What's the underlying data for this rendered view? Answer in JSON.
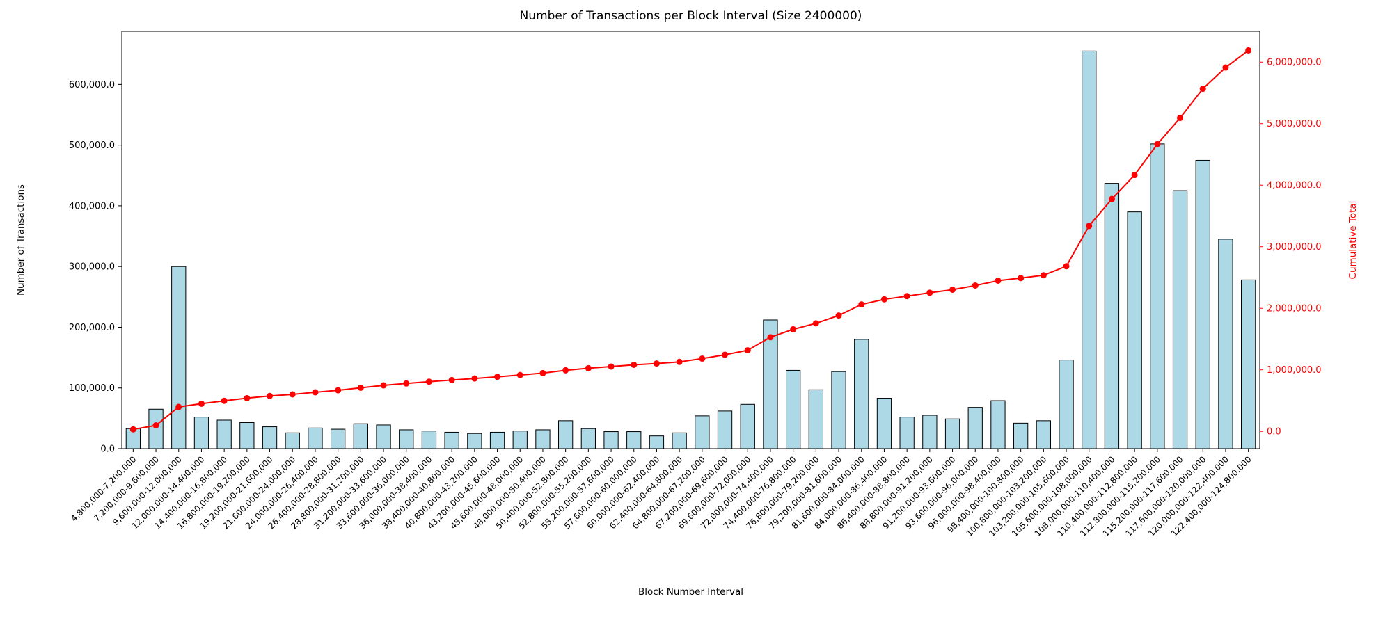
{
  "page": {
    "background": "#ffffff"
  },
  "chart_data": {
    "type": "bar",
    "title": "Number of Transactions per Block Interval (Size 2400000)",
    "xlabel": "Block Number Interval",
    "ylabel": "Number of Transactions",
    "ylabel_right": "Cumulative Total",
    "grid": false,
    "legend": "none",
    "categories": [
      "4,800,000-7,200,000",
      "7,200,000-9,600,000",
      "9,600,000-12,000,000",
      "12,000,000-14,400,000",
      "14,400,000-16,800,000",
      "16,800,000-19,200,000",
      "19,200,000-21,600,000",
      "21,600,000-24,000,000",
      "24,000,000-26,400,000",
      "26,400,000-28,800,000",
      "28,800,000-31,200,000",
      "31,200,000-33,600,000",
      "33,600,000-36,000,000",
      "36,000,000-38,400,000",
      "38,400,000-40,800,000",
      "40,800,000-43,200,000",
      "43,200,000-45,600,000",
      "45,600,000-48,000,000",
      "48,000,000-50,400,000",
      "50,400,000-52,800,000",
      "52,800,000-55,200,000",
      "55,200,000-57,600,000",
      "57,600,000-60,000,000",
      "60,000,000-62,400,000",
      "62,400,000-64,800,000",
      "64,800,000-67,200,000",
      "67,200,000-69,600,000",
      "69,600,000-72,000,000",
      "72,000,000-74,400,000",
      "74,400,000-76,800,000",
      "76,800,000-79,200,000",
      "79,200,000-81,600,000",
      "81,600,000-84,000,000",
      "84,000,000-86,400,000",
      "86,400,000-88,800,000",
      "88,800,000-91,200,000",
      "91,200,000-93,600,000",
      "93,600,000-96,000,000",
      "96,000,000-98,400,000",
      "98,400,000-100,800,000",
      "100,800,000-103,200,000",
      "103,200,000-105,600,000",
      "105,600,000-108,000,000",
      "108,000,000-110,400,000",
      "110,400,000-112,800,000",
      "112,800,000-115,200,000",
      "115,200,000-117,600,000",
      "117,600,000-120,000,000",
      "120,000,000-122,400,000",
      "122,400,000-124,800,000"
    ],
    "series": [
      {
        "name": "Number of Transactions",
        "type": "bar",
        "color": "#add8e6",
        "edge_color": "#000000",
        "values": [
          33000,
          65000,
          300000,
          52000,
          47000,
          43000,
          36000,
          26000,
          34000,
          32000,
          41000,
          39000,
          31000,
          29000,
          27000,
          25000,
          27000,
          29000,
          31000,
          46000,
          33000,
          28000,
          28000,
          21000,
          26000,
          54000,
          62000,
          73000,
          212000,
          129000,
          97000,
          127000,
          180000,
          83000,
          52000,
          55000,
          49000,
          68000,
          79000,
          42000,
          46000,
          146000,
          655000,
          437000,
          390000,
          502000,
          425000,
          475000,
          345000,
          278000
        ]
      },
      {
        "name": "Cumulative Total",
        "type": "line",
        "color": "#ff0000",
        "marker": "circle",
        "derived": "cumulative_sum_of_bar_values"
      }
    ],
    "left_axis": {
      "min": 0,
      "max": 687500,
      "ticks": [
        0,
        100000,
        200000,
        300000,
        400000,
        500000,
        600000
      ],
      "tick_label_format": "#,##0.0",
      "color": "#000000"
    },
    "right_axis": {
      "min": -280000,
      "max": 6500000,
      "ticks": [
        0,
        1000000,
        2000000,
        3000000,
        4000000,
        5000000,
        6000000
      ],
      "tick_label_format": "#,##0.0",
      "color": "#ff0000"
    }
  }
}
